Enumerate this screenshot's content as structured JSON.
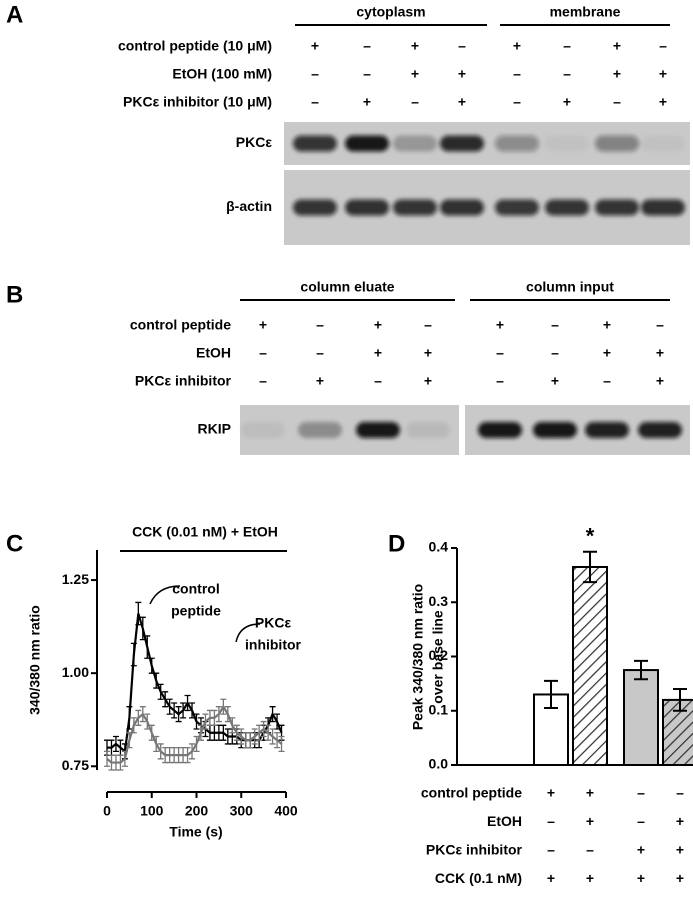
{
  "panel_a": {
    "label": "A",
    "groups": [
      "cytoplasm",
      "membrane"
    ],
    "conditions": [
      {
        "name": "control peptide (10 μM)",
        "signs": [
          "+",
          "–",
          "+",
          "–",
          "+",
          "–",
          "+",
          "–"
        ]
      },
      {
        "name": "EtOH (100 mM)",
        "signs": [
          "–",
          "–",
          "+",
          "+",
          "–",
          "–",
          "+",
          "+"
        ]
      },
      {
        "name": "PKCε inhibitor (10 μM)",
        "signs": [
          "–",
          "+",
          "–",
          "+",
          "–",
          "+",
          "–",
          "+"
        ]
      }
    ],
    "blots": [
      "PKCε",
      "β-actin"
    ]
  },
  "panel_b": {
    "label": "B",
    "groups": [
      "column eluate",
      "column input"
    ],
    "conditions": [
      {
        "name": "control peptide",
        "signs": [
          "+",
          "–",
          "+",
          "–",
          "+",
          "–",
          "+",
          "–"
        ]
      },
      {
        "name": "EtOH",
        "signs": [
          "–",
          "–",
          "+",
          "+",
          "–",
          "–",
          "+",
          "+"
        ]
      },
      {
        "name": "PKCε inhibitor",
        "signs": [
          "–",
          "+",
          "–",
          "+",
          "–",
          "+",
          "–",
          "+"
        ]
      }
    ],
    "blots": [
      "RKIP"
    ]
  },
  "chart_data": [
    {
      "type": "line",
      "label": "C",
      "title": "CCK (0.01 nM) + EtOH",
      "x_label": "Time (s)",
      "y_label": "340/380 nm ratio",
      "xlim": [
        0,
        400
      ],
      "xticks": [
        0,
        100,
        200,
        300,
        400
      ],
      "ylim": [
        0.74,
        1.32
      ],
      "yticks": [
        {
          "value": 0.75,
          "label": "0.75"
        },
        {
          "value": 1,
          "label": "1.00"
        },
        {
          "value": 1.25,
          "label": "1.25"
        }
      ],
      "x": [
        0,
        10,
        20,
        30,
        40,
        50,
        60,
        70,
        80,
        90,
        100,
        110,
        120,
        130,
        140,
        150,
        160,
        170,
        180,
        190,
        200,
        210,
        220,
        230,
        240,
        250,
        260,
        270,
        280,
        290,
        300,
        310,
        320,
        330,
        340,
        350,
        360,
        370,
        380,
        390
      ],
      "series": [
        {
          "color": "#000000",
          "values": [
            0.8,
            0.8,
            0.81,
            0.8,
            0.79,
            0.88,
            1.05,
            1.16,
            1.12,
            1.07,
            1.02,
            0.98,
            0.95,
            0.93,
            0.91,
            0.9,
            0.89,
            0.9,
            0.92,
            0.9,
            0.87,
            0.86,
            0.85,
            0.84,
            0.84,
            0.84,
            0.84,
            0.83,
            0.83,
            0.83,
            0.82,
            0.82,
            0.82,
            0.82,
            0.82,
            0.84,
            0.86,
            0.89,
            0.87,
            0.84
          ],
          "errors": [
            0.02,
            0.02,
            0.02,
            0.02,
            0.02,
            0.03,
            0.03,
            0.03,
            0.03,
            0.03,
            0.02,
            0.02,
            0.02,
            0.02,
            0.02,
            0.02,
            0.02,
            0.02,
            0.02,
            0.02,
            0.02,
            0.02,
            0.02,
            0.02,
            0.02,
            0.02,
            0.02,
            0.02,
            0.02,
            0.02,
            0.02,
            0.02,
            0.02,
            0.02,
            0.02,
            0.02,
            0.02,
            0.02,
            0.02,
            0.02
          ],
          "annotation": [
            "control",
            "peptide"
          ]
        },
        {
          "color": "#777777",
          "values": [
            0.77,
            0.76,
            0.76,
            0.76,
            0.77,
            0.82,
            0.86,
            0.88,
            0.89,
            0.87,
            0.84,
            0.81,
            0.79,
            0.78,
            0.78,
            0.78,
            0.78,
            0.78,
            0.78,
            0.79,
            0.81,
            0.84,
            0.87,
            0.88,
            0.88,
            0.89,
            0.91,
            0.89,
            0.86,
            0.84,
            0.83,
            0.82,
            0.82,
            0.83,
            0.84,
            0.85,
            0.84,
            0.83,
            0.82,
            0.81
          ],
          "errors": [
            0.02,
            0.02,
            0.02,
            0.02,
            0.02,
            0.02,
            0.02,
            0.02,
            0.02,
            0.02,
            0.02,
            0.02,
            0.02,
            0.02,
            0.02,
            0.02,
            0.02,
            0.02,
            0.02,
            0.02,
            0.02,
            0.02,
            0.02,
            0.02,
            0.02,
            0.02,
            0.02,
            0.02,
            0.02,
            0.02,
            0.02,
            0.02,
            0.02,
            0.02,
            0.02,
            0.02,
            0.02,
            0.02,
            0.02,
            0.02
          ],
          "annotation": [
            "PKCε",
            "inhibitor"
          ]
        }
      ]
    },
    {
      "type": "bar",
      "label": "D",
      "y_label": [
        "Peak 340/380 nm ratio",
        "over base line"
      ],
      "ylim": [
        0,
        0.4
      ],
      "yticks": [
        {
          "value": 0,
          "label": "0.0"
        },
        0.1,
        0.2,
        0.3,
        0.4
      ],
      "values": [
        0.13,
        0.365,
        0.175,
        0.12
      ],
      "errors": [
        0.025,
        0.028,
        0.017,
        0.02
      ],
      "colors": [
        "#ffffff",
        "#ffffff",
        "#c8c8c8",
        "#c8c8c8"
      ],
      "hatched": [
        false,
        true,
        false,
        true
      ],
      "value_annotations": [
        null,
        "*",
        null,
        null
      ],
      "rows": [
        {
          "label": "control peptide",
          "signs": [
            "+",
            "+",
            "–",
            "–"
          ]
        },
        {
          "label": "EtOH",
          "signs": [
            "–",
            "+",
            "–",
            "+"
          ]
        },
        {
          "label": "PKCε inhibitor",
          "signs": [
            "–",
            "–",
            "+",
            "+"
          ]
        },
        {
          "label": "CCK (0.1 nM)",
          "signs": [
            "+",
            "+",
            "+",
            "+"
          ]
        }
      ]
    }
  ]
}
